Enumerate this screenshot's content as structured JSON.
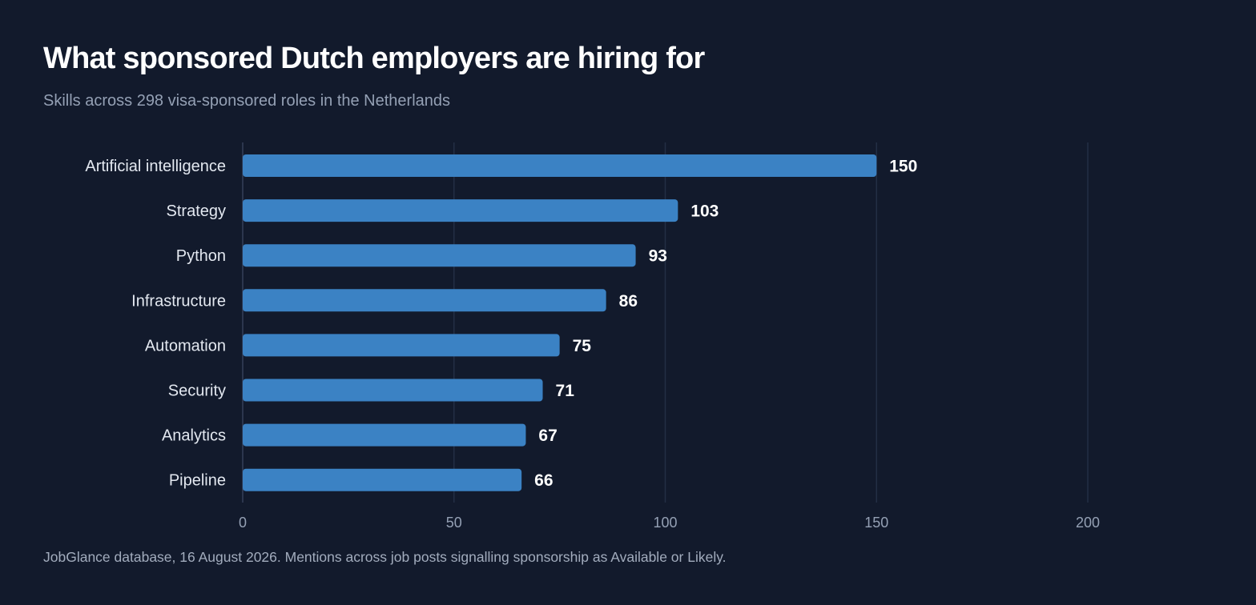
{
  "chart_data": {
    "type": "bar",
    "orientation": "horizontal",
    "title": "What sponsored Dutch employers are hiring for",
    "subtitle": "Skills across 298 visa-sponsored roles in the Netherlands",
    "categories": [
      "Artificial intelligence",
      "Strategy",
      "Python",
      "Infrastructure",
      "Automation",
      "Security",
      "Analytics",
      "Pipeline"
    ],
    "values": [
      150,
      103,
      93,
      86,
      75,
      71,
      67,
      66
    ],
    "xlim": [
      0,
      200
    ],
    "xticks": [
      0,
      50,
      100,
      150,
      200
    ],
    "grid": "vertical",
    "bar_color": "#3b82c4",
    "footnote": "JobGlance database, 16 August 2026. Mentions across job posts signalling sponsorship as Available or Likely."
  }
}
